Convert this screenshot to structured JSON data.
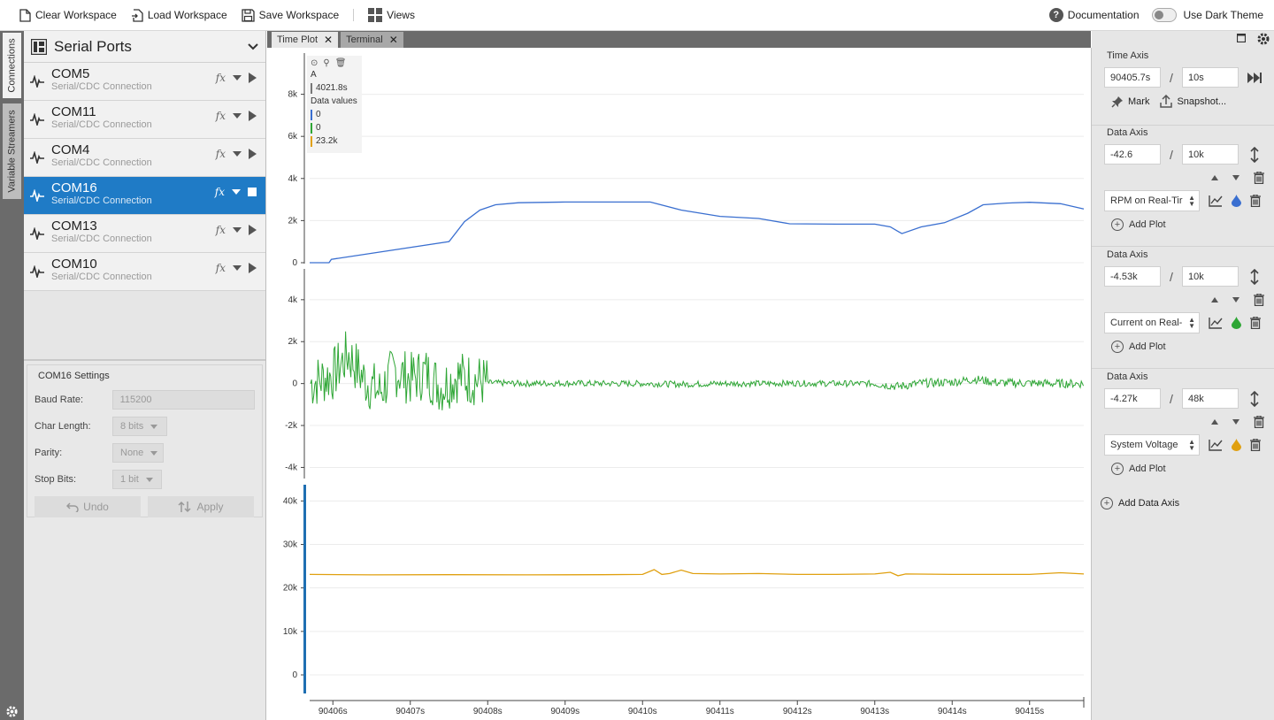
{
  "toolbar": {
    "clear_workspace": "Clear Workspace",
    "load_workspace": "Load Workspace",
    "save_workspace": "Save Workspace",
    "views": "Views",
    "documentation": "Documentation",
    "dark_theme": "Use Dark Theme",
    "dark_theme_on": false
  },
  "side_tabs": [
    "Connections",
    "Variable Streamers"
  ],
  "connections": {
    "title": "Serial Ports",
    "ports": [
      {
        "name": "COM5",
        "type": "Serial/CDC Connection",
        "selected": false
      },
      {
        "name": "COM11",
        "type": "Serial/CDC Connection",
        "selected": false
      },
      {
        "name": "COM4",
        "type": "Serial/CDC Connection",
        "selected": false
      },
      {
        "name": "COM16",
        "type": "Serial/CDC Connection",
        "selected": true
      },
      {
        "name": "COM13",
        "type": "Serial/CDC Connection",
        "selected": false
      },
      {
        "name": "COM10",
        "type": "Serial/CDC Connection",
        "selected": false
      }
    ],
    "settings": {
      "title": "COM16 Settings",
      "baud_label": "Baud Rate:",
      "baud_value": "115200",
      "char_label": "Char Length:",
      "char_value": "8 bits",
      "parity_label": "Parity:",
      "parity_value": "None",
      "stop_label": "Stop Bits:",
      "stop_value": "1 bit",
      "undo": "Undo",
      "apply": "Apply"
    }
  },
  "tabs": [
    {
      "label": "Time Plot",
      "active": true
    },
    {
      "label": "Terminal",
      "active": false
    }
  ],
  "legend": {
    "cursor_label": "A",
    "cursor_value": "4021.8s",
    "values_title": "Data values",
    "values": [
      {
        "value": "0",
        "color": "#3a6fd0"
      },
      {
        "value": "0",
        "color": "#2ea635"
      },
      {
        "value": "23.2k",
        "color": "#e0a010"
      }
    ]
  },
  "chart_data": [
    {
      "type": "line",
      "series": [
        {
          "name": "RPM on Real-Tir",
          "color": "#3a6fd0"
        }
      ],
      "ytick_labels": [
        "0",
        "2k",
        "4k",
        "6k",
        "8k"
      ],
      "yticks": [
        0,
        2000,
        4000,
        6000,
        8000
      ],
      "ylim": [
        -42.6,
        9957.4
      ],
      "x": [
        90405.7,
        90405.95,
        90405.98,
        90407.5,
        90407.7,
        90407.9,
        90408.1,
        90408.4,
        90409.0,
        90409.5,
        90410.1,
        90410.5,
        90411.0,
        90411.5,
        90411.9,
        90412.5,
        90413.0,
        90413.2,
        90413.35,
        90413.6,
        90413.9,
        90414.2,
        90414.4,
        90414.7,
        90415.0,
        90415.4,
        90415.7
      ],
      "values": [
        0,
        0,
        160,
        1000,
        1950,
        2500,
        2750,
        2850,
        2880,
        2880,
        2880,
        2500,
        2200,
        2100,
        1850,
        1830,
        1830,
        1700,
        1380,
        1700,
        1900,
        2350,
        2750,
        2830,
        2870,
        2800,
        2550
      ]
    },
    {
      "type": "line",
      "series": [
        {
          "name": "Current on Real-",
          "color": "#2ea635"
        }
      ],
      "ytick_labels": [
        "-4k",
        "-2k",
        "0",
        "2k",
        "4k"
      ],
      "yticks": [
        -4000,
        -2000,
        0,
        2000,
        4000
      ],
      "ylim": [
        -4530,
        5470
      ],
      "x": [
        90405.7,
        90406.0,
        90406.2,
        90406.4,
        90406.6,
        90406.8,
        90407.0,
        90407.2,
        90407.4,
        90407.6,
        90407.8,
        90408.0,
        90408.5,
        90409.0,
        90409.5,
        90410.0,
        90410.5,
        90411.0,
        90411.5,
        90412.0,
        90412.5,
        90413.0,
        90413.3,
        90413.6,
        90414.0,
        90414.3,
        90414.6,
        90415.0,
        90415.4,
        90415.7
      ],
      "values": [
        0,
        1200,
        4000,
        600,
        -1200,
        1800,
        600,
        1500,
        -500,
        1000,
        600,
        100,
        0,
        50,
        0,
        0,
        -100,
        0,
        0,
        50,
        0,
        0,
        -400,
        50,
        200,
        600,
        100,
        50,
        0,
        0
      ]
    },
    {
      "type": "line",
      "series": [
        {
          "name": "System Voltage",
          "color": "#e0a010"
        }
      ],
      "ytick_labels": [
        "0",
        "10k",
        "20k",
        "30k",
        "40k"
      ],
      "yticks": [
        0,
        10000,
        20000,
        30000,
        40000
      ],
      "ylim": [
        -4270,
        43730
      ],
      "x": [
        90405.7,
        90406.5,
        90407.5,
        90408.5,
        90409.5,
        90410.0,
        90410.15,
        90410.25,
        90410.35,
        90410.5,
        90410.65,
        90411.0,
        90411.5,
        90412.0,
        90412.5,
        90413.0,
        90413.2,
        90413.3,
        90413.4,
        90414.0,
        90414.5,
        90415.0,
        90415.4,
        90415.7
      ],
      "values": [
        23100,
        23000,
        23050,
        23000,
        23050,
        23100,
        24200,
        23100,
        23300,
        24100,
        23300,
        23200,
        23300,
        23100,
        23100,
        23200,
        23600,
        22800,
        23200,
        23100,
        23100,
        23100,
        23500,
        23200
      ]
    }
  ],
  "x_axis": {
    "ticks": [
      90406,
      90407,
      90408,
      90409,
      90410,
      90411,
      90412,
      90413,
      90414,
      90415
    ],
    "tick_labels": [
      "90406s",
      "90407s",
      "90408s",
      "90409s",
      "90410s",
      "90411s",
      "90412s",
      "90413s",
      "90414s",
      "90415s"
    ],
    "xlim": [
      90405.7,
      90415.7
    ]
  },
  "right_panel": {
    "time_axis_title": "Time Axis",
    "time_start": "90405.7s",
    "time_span": "10s",
    "mark": "Mark",
    "snapshot": "Snapshot...",
    "data_axes": [
      {
        "title": "Data Axis",
        "min": "-42.6",
        "span": "10k",
        "plot": "RPM on Real-Tir",
        "color": "#3a6fd0",
        "add_plot": "Add Plot"
      },
      {
        "title": "Data Axis",
        "min": "-4.53k",
        "span": "10k",
        "plot": "Current on Real-",
        "color": "#2ea635",
        "add_plot": "Add Plot"
      },
      {
        "title": "Data Axis",
        "min": "-4.27k",
        "span": "48k",
        "plot": "System Voltage",
        "color": "#e0a010",
        "add_plot": "Add Plot"
      }
    ],
    "add_data_axis": "Add Data Axis"
  }
}
